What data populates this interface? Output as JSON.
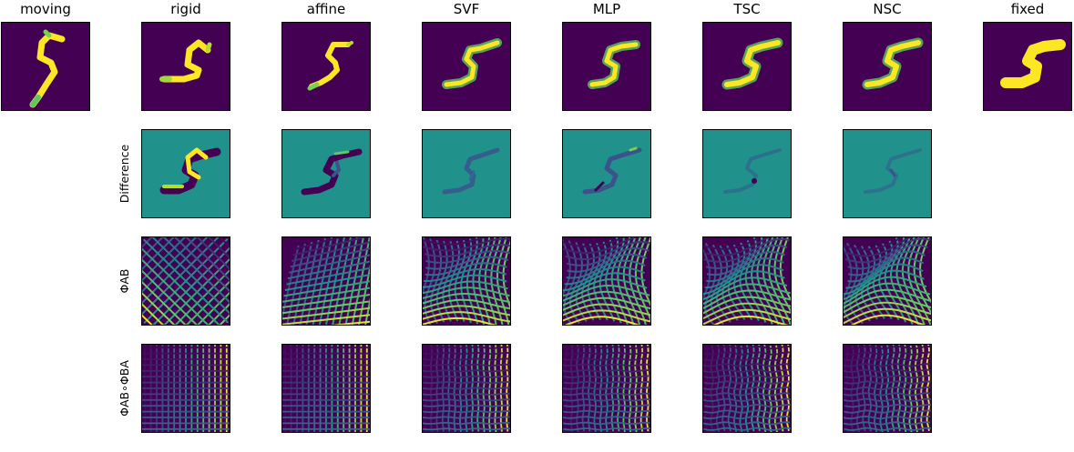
{
  "columns": [
    "moving",
    "rigid",
    "affine",
    "SVF",
    "MLP",
    "TSC",
    "NSC",
    "fixed"
  ],
  "row_labels": [
    "Difference",
    "ΦAB",
    "ΦAB∘ΦBA"
  ],
  "colormap": {
    "background": "#440154",
    "digit": "#fde725",
    "difference_neutral": "#21918c",
    "difference_low": "#3b528b",
    "difference_lowest": "#440154",
    "difference_high": "#fde725",
    "grid_dark": "#472d7b",
    "grid_mid": "#21918c",
    "grid_bright": "#fde725"
  }
}
